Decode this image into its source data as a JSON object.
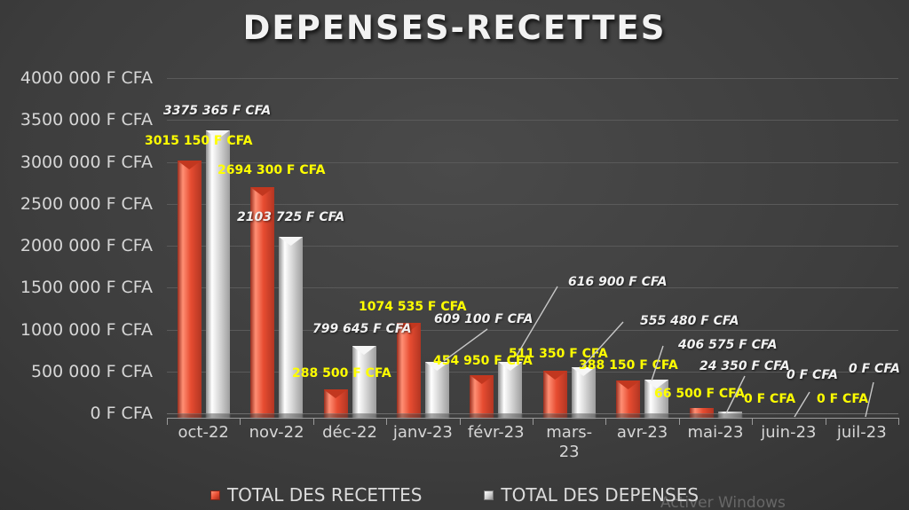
{
  "chart_data": {
    "type": "bar",
    "title": "DEPENSES-RECETTES",
    "categories": [
      "oct-22",
      "nov-22",
      "déc-22",
      "janv-23",
      "févr-23",
      "mars-23",
      "avr-23",
      "mai-23",
      "juin-23",
      "juil-23"
    ],
    "series": [
      {
        "name": "TOTAL DES RECETTES",
        "color": "#E7492E",
        "label_color": "#FFFF00",
        "values": [
          3015150,
          2694300,
          288500,
          1074535,
          454950,
          511350,
          388150,
          66500,
          0,
          0
        ],
        "labels": [
          "3015 150 F CFA",
          "2694 300 F CFA",
          "288 500 F CFA",
          "1074 535 F CFA",
          "454 950 F CFA",
          "511 350 F CFA",
          "388 150 F CFA",
          "66 500 F CFA",
          "0 F CFA",
          "0 F CFA"
        ]
      },
      {
        "name": "TOTAL DES DEPENSES",
        "color": "#C9C9C9",
        "label_color": "#F2F2F2",
        "values": [
          3375365,
          2103725,
          799645,
          609100,
          616900,
          555480,
          406575,
          24350,
          0,
          0
        ],
        "labels": [
          "3375 365 F CFA",
          "2103 725 F CFA",
          "799 645 F CFA",
          "609 100 F CFA",
          "616 900 F CFA",
          "555 480 F CFA",
          "406 575 F CFA",
          "24 350 F CFA",
          "0 F CFA",
          "0 F CFA"
        ]
      }
    ],
    "y_axis": {
      "min": 0,
      "max": 4000000,
      "step": 500000,
      "ticks": [
        "4000 000 F CFA",
        "3500 000 F CFA",
        "3000 000 F CFA",
        "2500 000 F CFA",
        "2000 000 F CFA",
        "1500 000 F CFA",
        "1000 000 F CFA",
        "500 000 F CFA",
        "0 F CFA"
      ]
    },
    "legend": {
      "position": "bottom"
    },
    "grid": true,
    "background": "#3D3D3D",
    "gridline_color": "#5A5A5A",
    "axis_text_color": "#D6D6D6"
  },
  "watermark": "Activer Windows"
}
